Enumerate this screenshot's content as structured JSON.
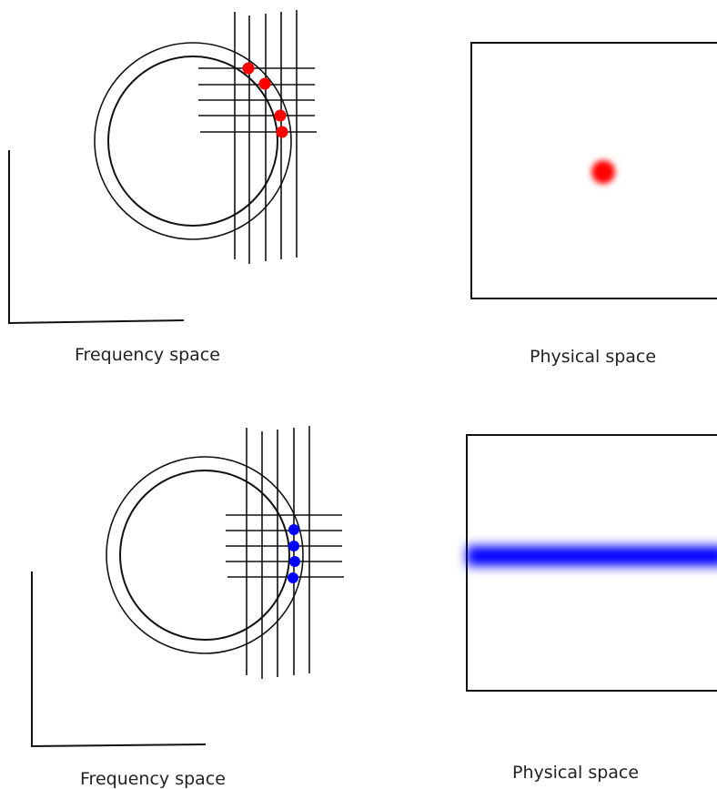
{
  "panels": [
    {
      "frequency_label": "Frequency space",
      "physical_label": "Physical space",
      "dot_color": "#ff0000",
      "physical_feature": "spot"
    },
    {
      "frequency_label": "Frequency space",
      "physical_label": "Physical space",
      "dot_color": "#0000ff",
      "physical_feature": "horizontal-band"
    }
  ],
  "colors": {
    "line": "#111111",
    "background": "#ffffff"
  }
}
